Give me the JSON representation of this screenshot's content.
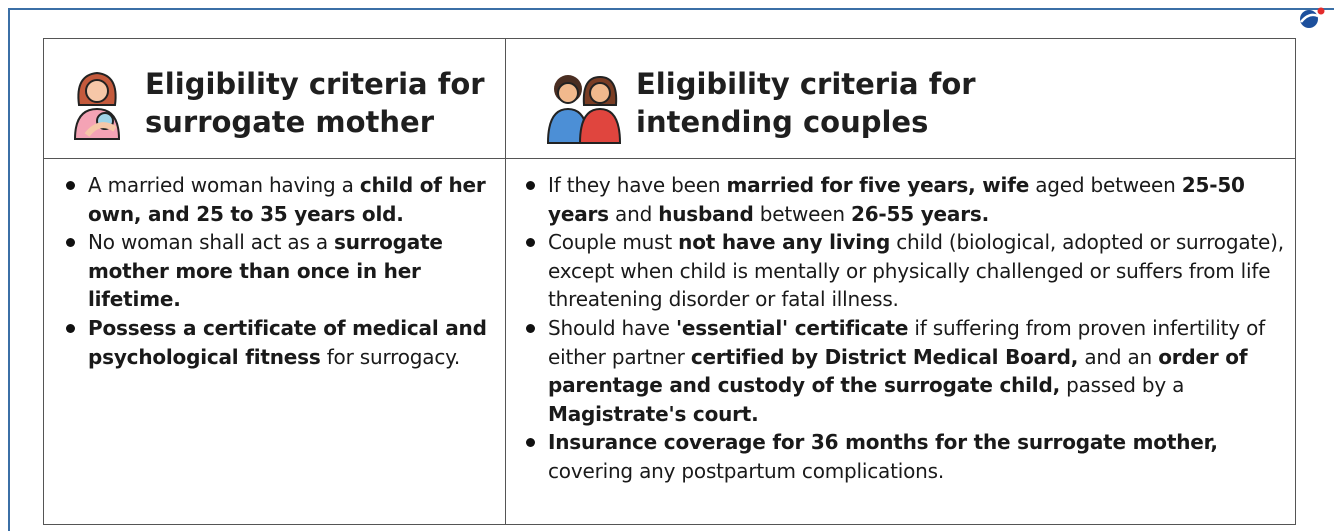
{
  "table": {
    "headers": [
      "Eligibility criteria for surrogate mother",
      "Eligibility criteria for intending couples"
    ],
    "columns": [
      {
        "items": [
          [
            {
              "text": "A married woman having a ",
              "bold": false
            },
            {
              "text": "child of her own, and 25 to 35 years old.",
              "bold": true
            }
          ],
          [
            {
              "text": "No woman shall act as a ",
              "bold": false
            },
            {
              "text": "surrogate mother more than once in her lifetime.",
              "bold": true
            }
          ],
          [
            {
              "text": "Possess a certificate of medical and psychological fitness",
              "bold": true
            },
            {
              "text": " for surrogacy.",
              "bold": false
            }
          ]
        ]
      },
      {
        "items": [
          [
            {
              "text": "If they have been ",
              "bold": false
            },
            {
              "text": "married for five years, wife",
              "bold": true
            },
            {
              "text": " aged between ",
              "bold": false
            },
            {
              "text": "25-50 years",
              "bold": true
            },
            {
              "text": " and ",
              "bold": false
            },
            {
              "text": "husband",
              "bold": true
            },
            {
              "text": " between ",
              "bold": false
            },
            {
              "text": "26-55 years.",
              "bold": true
            }
          ],
          [
            {
              "text": "Couple must ",
              "bold": false
            },
            {
              "text": "not have any living",
              "bold": true
            },
            {
              "text": " child (biological, adopted or surrogate), except when child is mentally or physically challenged or suffers from life threatening disorder or fatal illness.",
              "bold": false
            }
          ],
          [
            {
              "text": "Should have ",
              "bold": false
            },
            {
              "text": "'essential' certificate",
              "bold": true
            },
            {
              "text": " if suffering from proven infertility of either partner ",
              "bold": false
            },
            {
              "text": "certified by District Medical Board,",
              "bold": true
            },
            {
              "text": " and an ",
              "bold": false
            },
            {
              "text": "order of parentage and custody of the surrogate child,",
              "bold": true
            },
            {
              "text": " passed by a ",
              "bold": false
            },
            {
              "text": "Magistrate's court.",
              "bold": true
            }
          ],
          [
            {
              "text": "Insurance coverage for 36 months for the surrogate mother,",
              "bold": true
            },
            {
              "text": " covering any postpartum complications.",
              "bold": false
            }
          ]
        ]
      }
    ]
  }
}
